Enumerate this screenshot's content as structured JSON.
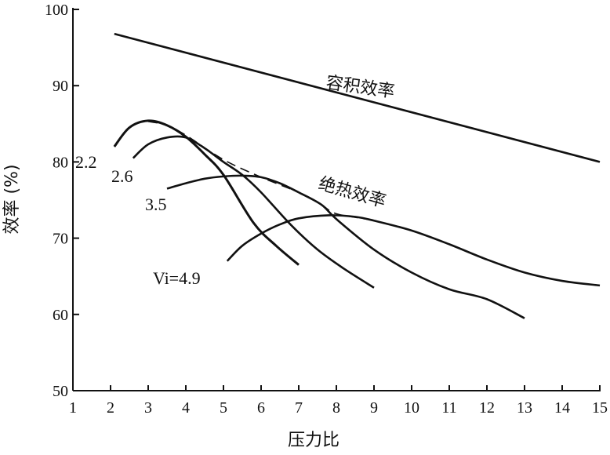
{
  "chart_data": {
    "type": "line",
    "title": "",
    "xlabel": "压力比",
    "ylabel": "效率 (%)",
    "xlim": [
      1,
      15
    ],
    "ylim": [
      50,
      100
    ],
    "xticks": [
      1,
      2,
      3,
      4,
      5,
      6,
      7,
      8,
      9,
      10,
      11,
      12,
      13,
      14,
      15
    ],
    "yticks": [
      50,
      60,
      70,
      80,
      90,
      100
    ],
    "grid": false,
    "series": [
      {
        "name": "容积效率",
        "label": "容积效率",
        "style": "solid",
        "x": [
          2.1,
          15
        ],
        "y": [
          96.8,
          80
        ]
      },
      {
        "name": "绝热效率",
        "label": "绝热效率",
        "style": "dashed",
        "x": [
          3,
          3.5,
          4,
          5,
          6,
          7,
          7.6,
          8,
          9,
          10,
          11,
          12,
          13,
          14,
          15
        ],
        "y": [
          85.3,
          84.8,
          83.5,
          80.3,
          78,
          76,
          74.4,
          73.2,
          72.3,
          71,
          69.2,
          67.2,
          65.5,
          64.4,
          63.8
        ]
      },
      {
        "name": "Vi=2.2",
        "label": "2.2",
        "style": "solid",
        "x": [
          2.1,
          2.5,
          3,
          3.5,
          4,
          4.5,
          5,
          5.8,
          6.4,
          7
        ],
        "y": [
          82,
          84.5,
          85.4,
          84.8,
          83.3,
          81,
          78.3,
          72,
          69,
          66.5
        ]
      },
      {
        "name": "Vi=2.6",
        "label": "2.6",
        "style": "solid",
        "x": [
          2.6,
          3,
          3.5,
          4,
          4.5,
          5,
          5.5,
          6,
          6.8,
          7.5,
          8.2,
          9
        ],
        "y": [
          80.5,
          82.3,
          83.2,
          83.2,
          81.8,
          80,
          78.3,
          76,
          71.7,
          68.5,
          66,
          63.5
        ]
      },
      {
        "name": "Vi=3.5",
        "label": "3.5",
        "style": "solid",
        "x": [
          3.5,
          4,
          4.5,
          5,
          5.5,
          6,
          6.5,
          7,
          7.6,
          8,
          9,
          10,
          11,
          12,
          13
        ],
        "y": [
          76.5,
          77.2,
          77.8,
          78.1,
          78.2,
          78,
          77.2,
          76,
          74.4,
          72.5,
          68.5,
          65.5,
          63.3,
          62,
          59.5
        ]
      },
      {
        "name": "Vi=4.9",
        "label": "Vi=4.9",
        "style": "solid",
        "x": [
          5.1,
          5.5,
          6,
          6.5,
          7,
          7.8,
          8.5,
          9,
          10,
          11,
          12,
          13,
          14,
          15
        ],
        "y": [
          67,
          69,
          70.6,
          71.8,
          72.6,
          73,
          72.8,
          72.3,
          71,
          69.2,
          67.2,
          65.5,
          64.4,
          63.8
        ]
      }
    ]
  }
}
